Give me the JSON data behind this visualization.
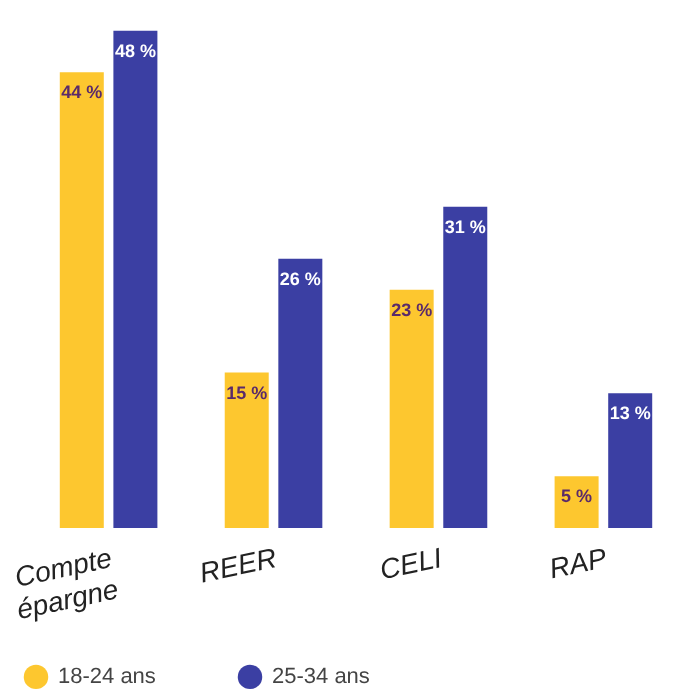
{
  "chart_data": {
    "type": "bar",
    "categories": [
      "Compte épargne",
      "REER",
      "CELI",
      "RAP"
    ],
    "series": [
      {
        "name": "18-24 ans",
        "color": "#fdc72f",
        "values": [
          44,
          15,
          23,
          5
        ],
        "value_labels": [
          "44 %",
          "15 %",
          "23 %",
          "5 %"
        ]
      },
      {
        "name": "25-34 ans",
        "color": "#3b3fa3",
        "values": [
          48,
          26,
          31,
          13
        ],
        "value_labels": [
          "48 %",
          "26 %",
          "31 %",
          "13 %"
        ]
      }
    ],
    "legend": "bottom",
    "grid": false
  }
}
